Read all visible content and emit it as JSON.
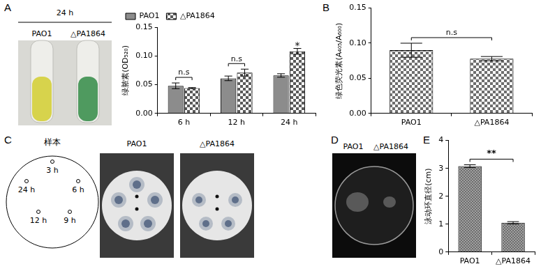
{
  "panel_labels": [
    "A",
    "B",
    "C",
    "D",
    "E"
  ],
  "photo_a": {
    "title": "24 h",
    "labels": [
      "PAO1",
      "△PA1864"
    ]
  },
  "photo_c": {
    "diagram_title": "样本",
    "spots": [
      "3 h",
      "6 h",
      "9 h",
      "12 h",
      "24 h"
    ],
    "labels": [
      "PAO1",
      "△PA1864"
    ]
  },
  "photo_d": {
    "labels": [
      "PAO1",
      "△PA1864"
    ]
  },
  "chart_data": [
    {
      "type": "bar",
      "y_label": "绿脓素(OD₅₂₀)",
      "categories": [
        "6 h",
        "12 h",
        "24 h"
      ],
      "series": [
        {
          "name": "PAO1",
          "color": "#8c8c8c",
          "values": [
            0.048,
            0.061,
            0.066
          ],
          "errors": [
            0.005,
            0.004,
            0.003
          ]
        },
        {
          "name": "△PA1864",
          "color": "#5a5a5a",
          "values": [
            0.044,
            0.071,
            0.108
          ],
          "errors": [
            0.001,
            0.006,
            0.005
          ]
        }
      ],
      "ylim": [
        0,
        0.15
      ],
      "yticks": [
        {
          "value": 0,
          "label": "0.00"
        },
        {
          "value": 0.05,
          "label": "0.05"
        },
        {
          "value": 0.1,
          "label": "0.10"
        },
        {
          "value": 0.15,
          "label": "0.15"
        }
      ],
      "grid": false,
      "legend": "upper left",
      "annotations": [
        {
          "category": "6 h",
          "text": "n.s"
        },
        {
          "category": "12 h",
          "text": "n.s"
        },
        {
          "category": "24 h",
          "series": "△PA1864",
          "text": "*"
        }
      ]
    },
    {
      "type": "bar",
      "y_label": "绿色荧光素(A₄₀₅/A₆₀₀)",
      "categories": [
        "PAO1",
        "△PA1864"
      ],
      "values": [
        0.09,
        0.078
      ],
      "errors": [
        0.01,
        0.003
      ],
      "color": "#6e6e6e",
      "ylim": [
        0,
        0.15
      ],
      "yticks": [
        {
          "value": 0,
          "label": "0.00"
        },
        {
          "value": 0.05,
          "label": "0.05"
        },
        {
          "value": 0.1,
          "label": "0.10"
        },
        {
          "value": 0.15,
          "label": "0.15"
        }
      ],
      "grid": false,
      "annotations": [
        {
          "text": "n.s"
        }
      ]
    },
    {
      "type": "bar",
      "y_label": "泳动环直径(cm)",
      "categories": [
        "PAO1",
        "△PA1864"
      ],
      "values": [
        3.08,
        1.05
      ],
      "errors": [
        0.05,
        0.04
      ],
      "color": "#6e6e6e",
      "ylim": [
        0,
        4
      ],
      "yticks": [
        0,
        1,
        2,
        3,
        4
      ],
      "grid": false,
      "annotations": [
        {
          "text": "**"
        }
      ]
    }
  ]
}
